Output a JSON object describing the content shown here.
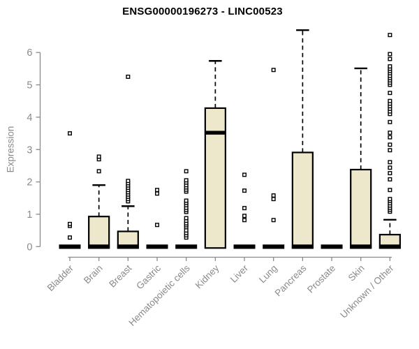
{
  "chart_data": {
    "type": "boxplot",
    "title": "ENSG00000196273 - LINC00523",
    "ylabel": "Expression",
    "xlabel": "",
    "ylim": [
      0,
      6.8
    ],
    "yticks": [
      0,
      1,
      2,
      3,
      4,
      5,
      6
    ],
    "grid": false,
    "legend": false,
    "categories": [
      "Bladder",
      "Brain",
      "Breast",
      "Gastric",
      "Hematopoietic cells",
      "Kidney",
      "Liver",
      "Lung",
      "Pancreas",
      "Prostate",
      "Skin",
      "Unknown / Other"
    ],
    "series": [
      {
        "name": "Bladder",
        "q1": 0,
        "median": 0,
        "q3": 0,
        "whisker_low": 0,
        "whisker_high": 0,
        "outliers": [
          0.28,
          0.64,
          0.7,
          3.5
        ]
      },
      {
        "name": "Brain",
        "q1": 0,
        "median": 0,
        "q3": 0.93,
        "whisker_low": 0,
        "whisker_high": 1.9,
        "outliers": [
          2.33,
          2.7,
          2.78
        ]
      },
      {
        "name": "Breast",
        "q1": 0,
        "median": 0,
        "q3": 0.47,
        "whisker_low": 0,
        "whisker_high": 1.25,
        "outliers": [
          1.4,
          1.47,
          1.54,
          1.61,
          1.68,
          1.75,
          1.82,
          1.89,
          1.96,
          2.03,
          5.25
        ]
      },
      {
        "name": "Gastric",
        "q1": 0,
        "median": 0,
        "q3": 0,
        "whisker_low": 0,
        "whisker_high": 0,
        "outliers": [
          0.67,
          1.64,
          1.75
        ]
      },
      {
        "name": "Hematopoietic cells",
        "q1": 0,
        "median": 0,
        "q3": 0,
        "whisker_low": 0,
        "whisker_high": 0,
        "outliers": [
          0.28,
          0.35,
          0.42,
          0.5,
          0.6,
          0.66,
          0.72,
          0.8,
          0.88,
          1.07,
          1.13,
          1.2,
          1.28,
          1.35,
          1.42,
          1.7,
          1.76,
          1.83,
          1.9,
          1.98,
          2.05,
          2.33
        ]
      },
      {
        "name": "Kidney",
        "q1": 0,
        "median": 3.52,
        "q3": 4.28,
        "whisker_low": 0,
        "whisker_high": 5.74,
        "outliers": []
      },
      {
        "name": "Liver",
        "q1": 0,
        "median": 0,
        "q3": 0,
        "whisker_low": 0,
        "whisker_high": 0,
        "outliers": [
          0.82,
          0.95,
          1.19,
          1.73,
          2.22
        ]
      },
      {
        "name": "Lung",
        "q1": 0,
        "median": 0,
        "q3": 0,
        "whisker_low": 0,
        "whisker_high": 0,
        "outliers": [
          0.82,
          1.47,
          1.58,
          5.46
        ]
      },
      {
        "name": "Pancreas",
        "q1": 0,
        "median": 0,
        "q3": 2.91,
        "whisker_low": 0,
        "whisker_high": 6.69,
        "outliers": []
      },
      {
        "name": "Prostate",
        "q1": 0,
        "median": 0,
        "q3": 0,
        "whisker_low": 0,
        "whisker_high": 0,
        "outliers": []
      },
      {
        "name": "Skin",
        "q1": 0,
        "median": 0,
        "q3": 2.38,
        "whisker_low": 0,
        "whisker_high": 5.51,
        "outliers": []
      },
      {
        "name": "Unknown / Other",
        "q1": 0,
        "median": 0,
        "q3": 0.37,
        "whisker_low": 0,
        "whisker_high": 0.83,
        "outliers": [
          1.08,
          1.14,
          1.2,
          1.27,
          1.34,
          1.41,
          1.47,
          1.75,
          2.08,
          2.27,
          2.44,
          2.61,
          2.98,
          3.15,
          3.38,
          3.52,
          3.85,
          4.1,
          4.18,
          4.26,
          4.34,
          4.42,
          4.5,
          4.75,
          5.0,
          5.07,
          5.14,
          5.21,
          5.28,
          5.36,
          5.43,
          5.5,
          5.57,
          5.8,
          5.95,
          6.54
        ]
      }
    ],
    "colors": {
      "box_fill": "#EDE7CB",
      "box_border": "#000000",
      "median": "#000000",
      "whisker": "#000000",
      "outlier_fill": "#FFFFFF",
      "axis": "#8A8A8A",
      "tick_label": "#8A8A8A",
      "title": "#000000",
      "background": "#FFFFFF"
    }
  }
}
